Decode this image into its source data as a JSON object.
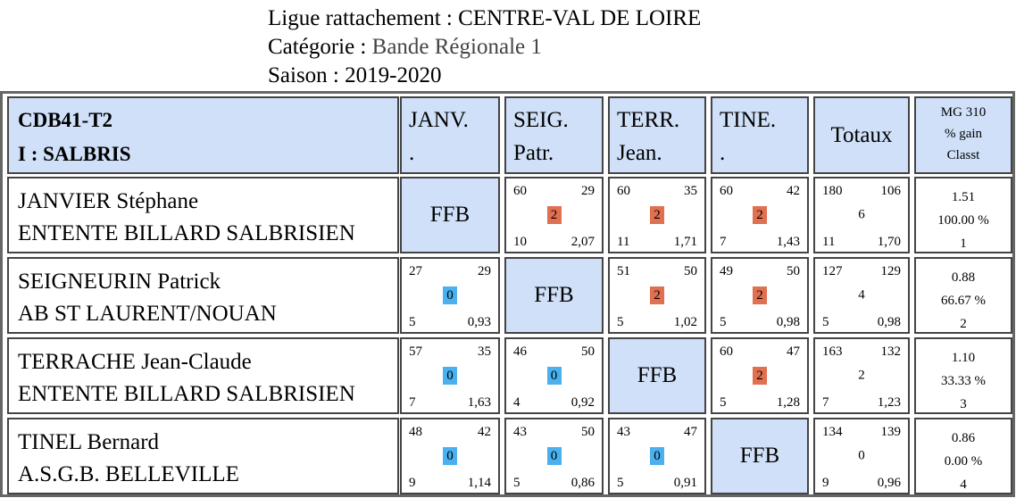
{
  "header": {
    "ligue_label": "Ligue rattachement :",
    "ligue_value": "CENTRE-VAL DE LOIRE",
    "categorie_label": "Catégorie :",
    "categorie_value": "Bande Régionale 1",
    "saison_label": "Saison :",
    "saison_value": "2019-2020"
  },
  "team": {
    "line1": "CDB41-T2",
    "line2": "I : SALBRIS"
  },
  "columns": [
    {
      "line1": "JANV.",
      "line2": "."
    },
    {
      "line1": "SEIG.",
      "line2": "Patr."
    },
    {
      "line1": "TERR.",
      "line2": "Jean."
    },
    {
      "line1": "TINE.",
      "line2": "."
    }
  ],
  "totaux_label": "Totaux",
  "mg_header": {
    "line1": "MG 310",
    "line2": "% gain",
    "line3": "Classt"
  },
  "ffb_label": "FFB",
  "players": [
    {
      "name": "JANVIER Stéphane",
      "club": "ENTENTE BILLARD SALBRISIEN",
      "matches": [
        null,
        {
          "tl": "60",
          "tr": "29",
          "pts": "2",
          "bl": "10",
          "br": "2,07"
        },
        {
          "tl": "60",
          "tr": "35",
          "pts": "2",
          "bl": "11",
          "br": "1,71"
        },
        {
          "tl": "60",
          "tr": "42",
          "pts": "2",
          "bl": "7",
          "br": "1,43"
        }
      ],
      "totals": {
        "tl": "180",
        "tr": "106",
        "center": "6",
        "bl": "11",
        "br": "1,70"
      },
      "stats": {
        "mg": "1.51",
        "pct": "100.00 %",
        "rank": "1"
      }
    },
    {
      "name": "SEIGNEURIN Patrick",
      "club": "AB ST LAURENT/NOUAN",
      "matches": [
        {
          "tl": "27",
          "tr": "29",
          "pts": "0",
          "bl": "5",
          "br": "0,93"
        },
        null,
        {
          "tl": "51",
          "tr": "50",
          "pts": "2",
          "bl": "5",
          "br": "1,02"
        },
        {
          "tl": "49",
          "tr": "50",
          "pts": "2",
          "bl": "5",
          "br": "0,98"
        }
      ],
      "totals": {
        "tl": "127",
        "tr": "129",
        "center": "4",
        "bl": "5",
        "br": "0,98"
      },
      "stats": {
        "mg": "0.88",
        "pct": "66.67 %",
        "rank": "2"
      }
    },
    {
      "name": "TERRACHE Jean-Claude",
      "club": "ENTENTE BILLARD SALBRISIEN",
      "matches": [
        {
          "tl": "57",
          "tr": "35",
          "pts": "0",
          "bl": "7",
          "br": "1,63"
        },
        {
          "tl": "46",
          "tr": "50",
          "pts": "0",
          "bl": "4",
          "br": "0,92"
        },
        null,
        {
          "tl": "60",
          "tr": "47",
          "pts": "2",
          "bl": "5",
          "br": "1,28"
        }
      ],
      "totals": {
        "tl": "163",
        "tr": "132",
        "center": "2",
        "bl": "7",
        "br": "1,23"
      },
      "stats": {
        "mg": "1.10",
        "pct": "33.33 %",
        "rank": "3"
      }
    },
    {
      "name": "TINEL Bernard",
      "club": "A.S.G.B. BELLEVILLE",
      "matches": [
        {
          "tl": "48",
          "tr": "42",
          "pts": "0",
          "bl": "9",
          "br": "1,14"
        },
        {
          "tl": "43",
          "tr": "50",
          "pts": "0",
          "bl": "5",
          "br": "0,86"
        },
        {
          "tl": "43",
          "tr": "47",
          "pts": "0",
          "bl": "5",
          "br": "0,91"
        },
        null
      ],
      "totals": {
        "tl": "134",
        "tr": "139",
        "center": "0",
        "bl": "9",
        "br": "0,96"
      },
      "stats": {
        "mg": "0.86",
        "pct": "0.00 %",
        "rank": "4"
      }
    }
  ]
}
